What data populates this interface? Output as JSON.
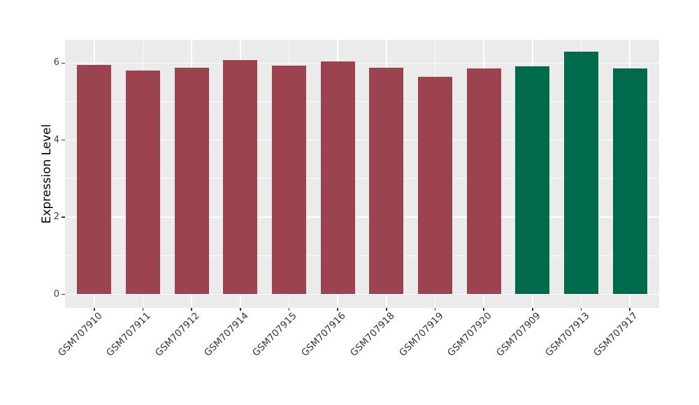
{
  "chart_data": {
    "type": "bar",
    "title": "",
    "ylabel": "Expression Level",
    "xlabel": "",
    "categories": [
      "GSM707910",
      "GSM707911",
      "GSM707912",
      "GSM707914",
      "GSM707915",
      "GSM707916",
      "GSM707918",
      "GSM707919",
      "GSM707920",
      "GSM707909",
      "GSM707913",
      "GSM707917"
    ],
    "values": [
      5.95,
      5.81,
      5.87,
      6.07,
      5.94,
      6.05,
      5.88,
      5.64,
      5.86,
      5.92,
      6.3,
      5.86
    ],
    "bar_colors": [
      "#9B4450",
      "#9B4450",
      "#9B4450",
      "#9B4450",
      "#9B4450",
      "#9B4450",
      "#9B4450",
      "#9B4450",
      "#9B4450",
      "#006B4C",
      "#006B4C",
      "#006B4C"
    ],
    "yticks": [
      0,
      2,
      4,
      6
    ],
    "yticks_minor": [
      1,
      3,
      5
    ],
    "ylim": [
      -0.315,
      6.615
    ],
    "grid": "on",
    "legend": "none",
    "x_tick_angle": 45,
    "panel_bg": "#EBEBEB",
    "grid_color": "#FFFFFF",
    "axis_text_color": "#404040",
    "axis_title_color": "#000000"
  }
}
